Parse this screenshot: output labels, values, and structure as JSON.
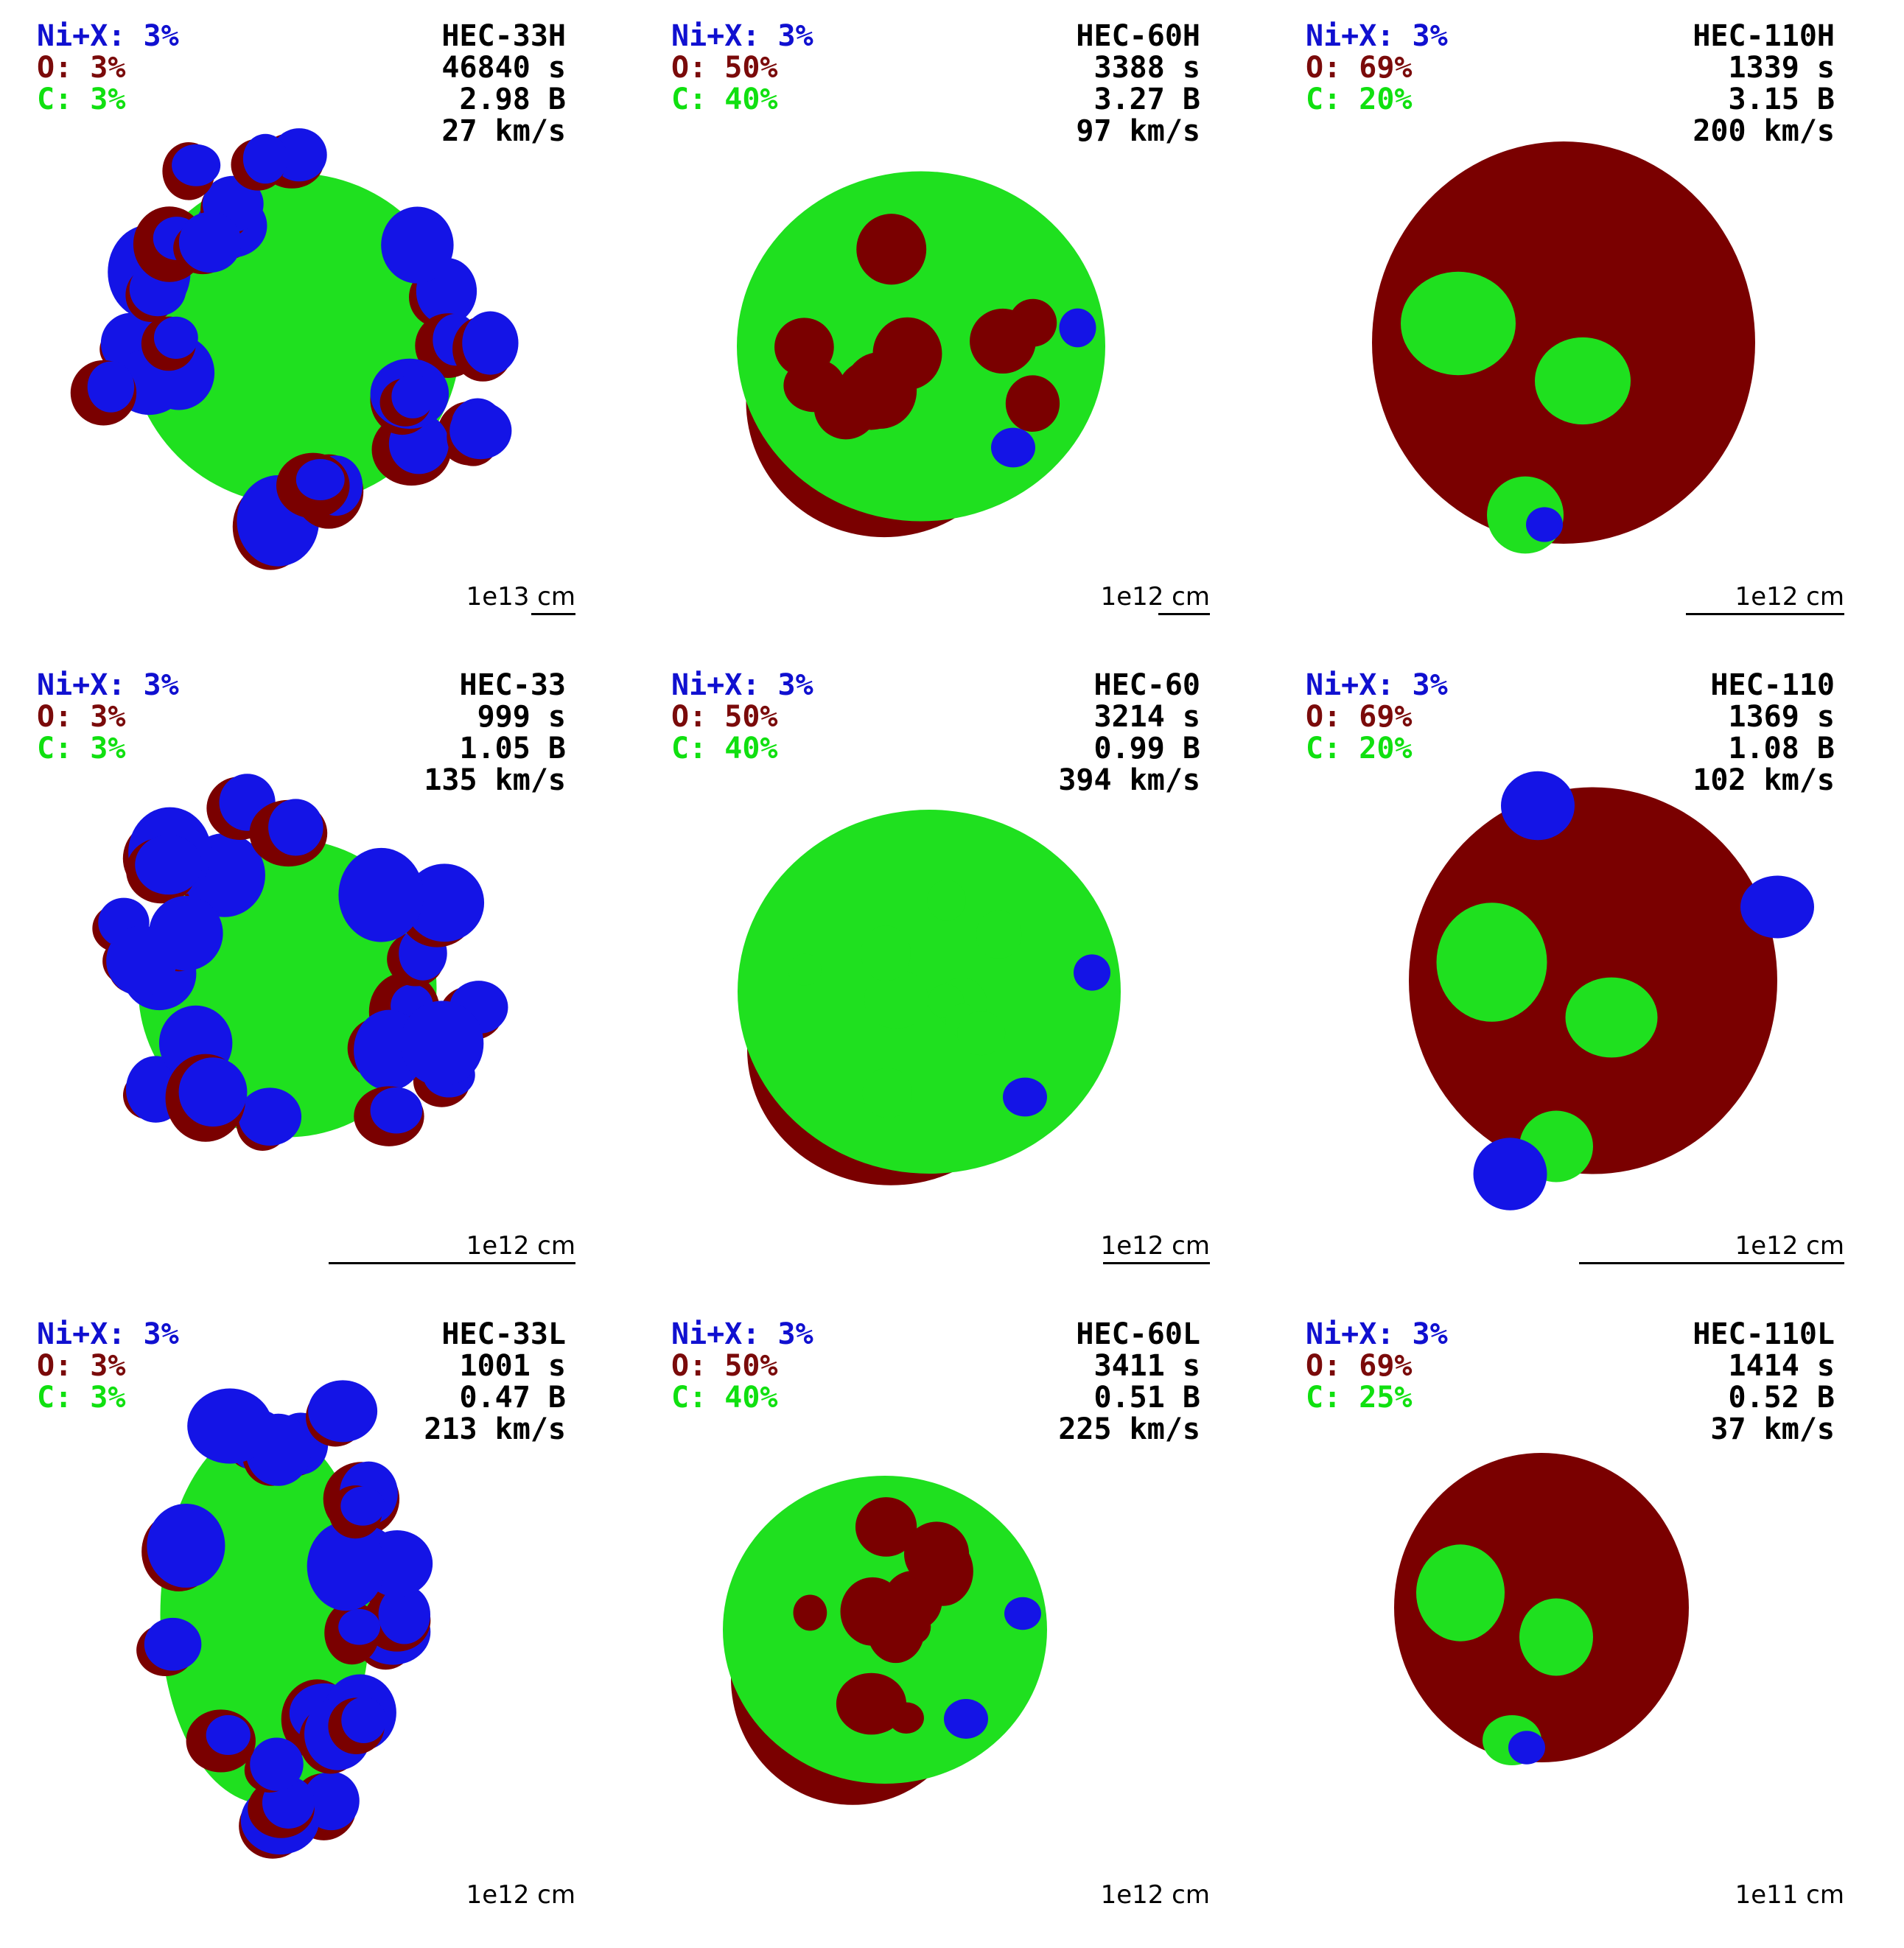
{
  "panels": [
    {
      "composition": [
        "Ni+X: 3%",
        "O: 3%",
        "C: 3%"
      ],
      "model": "HEC-33H",
      "time": "46840 s",
      "energy": "2.98 B",
      "velocity": "27 km/s",
      "scale": "1e13 cm"
    },
    {
      "composition": [
        "Ni+X: 3%",
        "O: 50%",
        "C: 40%"
      ],
      "model": "HEC-60H",
      "time": "3388 s",
      "energy": "3.27 B",
      "velocity": "97 km/s",
      "scale": "1e12 cm"
    },
    {
      "composition": [
        "Ni+X: 3%",
        "O: 69%",
        "C: 20%"
      ],
      "model": "HEC-110H",
      "time": "1339 s",
      "energy": "3.15 B",
      "velocity": "200 km/s",
      "scale": "1e12 cm"
    },
    {
      "composition": [
        "Ni+X: 3%",
        "O: 3%",
        "C: 3%"
      ],
      "model": "HEC-33",
      "time": "999 s",
      "energy": "1.05 B",
      "velocity": "135 km/s",
      "scale": "1e12 cm"
    },
    {
      "composition": [
        "Ni+X: 3%",
        "O: 50%",
        "C: 40%"
      ],
      "model": "HEC-60",
      "time": "3214 s",
      "energy": "0.99 B",
      "velocity": "394 km/s",
      "scale": "1e12 cm"
    },
    {
      "composition": [
        "Ni+X: 3%",
        "O: 69%",
        "C: 20%"
      ],
      "model": "HEC-110",
      "time": "1369 s",
      "energy": "1.08 B",
      "velocity": "102 km/s",
      "scale": "1e12 cm"
    },
    {
      "composition": [
        "Ni+X: 3%",
        "O: 3%",
        "C: 3%"
      ],
      "model": "HEC-33L",
      "time": "1001 s",
      "energy": "0.47 B",
      "velocity": "213 km/s",
      "scale": "1e12 cm"
    },
    {
      "composition": [
        "Ni+X: 3%",
        "O: 50%",
        "C: 40%"
      ],
      "model": "HEC-60L",
      "time": "3411 s",
      "energy": "0.51 B",
      "velocity": "225 km/s",
      "scale": "1e12 cm"
    },
    {
      "composition": [
        "Ni+X: 3%",
        "O: 69%",
        "C: 25%"
      ],
      "model": "HEC-110L",
      "time": "1414 s",
      "energy": "0.52 B",
      "velocity": "37 km/s",
      "scale": "1e11 cm"
    }
  ]
}
